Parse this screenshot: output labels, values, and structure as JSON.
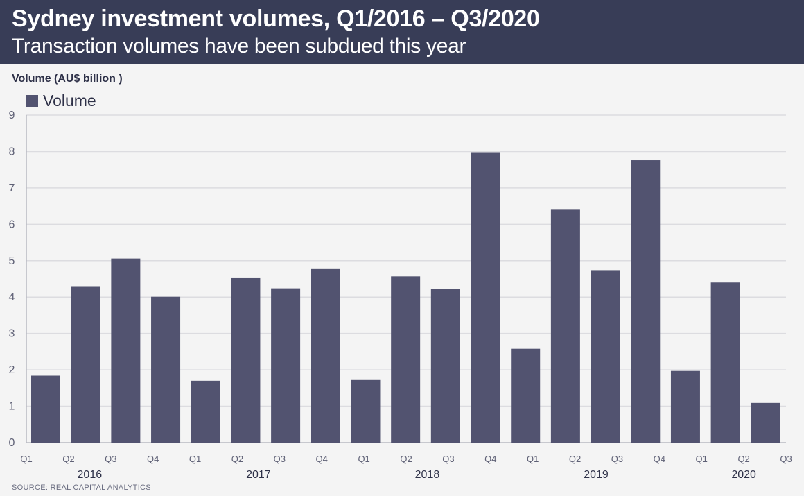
{
  "header": {
    "title": "Sydney investment volumes, Q1/2016 – Q3/2020",
    "subtitle": "Transaction volumes have been subdued this year"
  },
  "footer": {
    "source": "SOURCE: REAL CAPITAL ANALYTICS"
  },
  "colors": {
    "header_bg": "#383d57",
    "bar": "#525370",
    "grid": "#dcdce0",
    "axis_text": "#5f6176"
  },
  "chart_data": {
    "type": "bar",
    "ylabel": "Volume (AU$ billion )",
    "xlabel": "",
    "ylim": [
      0,
      9
    ],
    "yticks": [
      0,
      1,
      2,
      3,
      4,
      5,
      6,
      7,
      8,
      9
    ],
    "grid": true,
    "legend_position": "top-left",
    "categories": [
      "Q1",
      "Q2",
      "Q3",
      "Q4",
      "Q1",
      "Q2",
      "Q3",
      "Q4",
      "Q1",
      "Q2",
      "Q3",
      "Q4",
      "Q1",
      "Q2",
      "Q3",
      "Q4",
      "Q1",
      "Q2",
      "Q3"
    ],
    "years": [
      {
        "label": "2016",
        "start": 0,
        "end": 3
      },
      {
        "label": "2017",
        "start": 4,
        "end": 7
      },
      {
        "label": "2018",
        "start": 8,
        "end": 11
      },
      {
        "label": "2019",
        "start": 12,
        "end": 15
      },
      {
        "label": "2020",
        "start": 16,
        "end": 18
      }
    ],
    "series": [
      {
        "name": "Volume",
        "values": [
          1.84,
          4.3,
          5.06,
          4.01,
          1.7,
          4.52,
          4.24,
          4.77,
          1.72,
          4.57,
          4.22,
          7.98,
          2.58,
          6.4,
          4.74,
          7.76,
          1.97,
          4.4,
          1.09
        ]
      }
    ]
  }
}
